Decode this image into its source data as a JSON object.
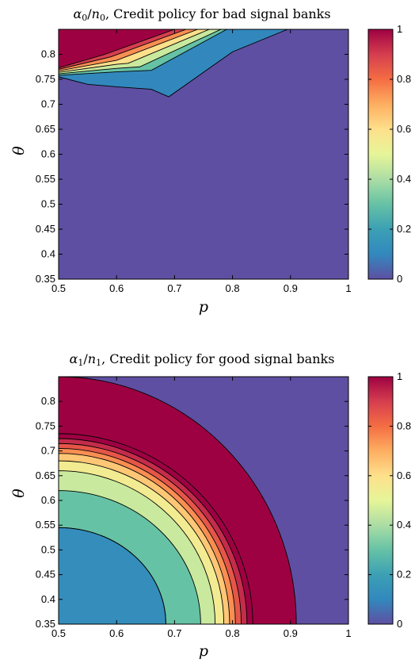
{
  "chart_data": [
    {
      "type": "contour",
      "title": "α0/n0, Credit policy for bad signal banks",
      "xlabel": "p",
      "ylabel": "θ",
      "xlim": [
        0.5,
        1
      ],
      "ylim": [
        0.35,
        0.85
      ],
      "x_ticks": [
        "0.5",
        "0.6",
        "0.7",
        "0.8",
        "0.9",
        "1"
      ],
      "y_ticks": [
        "0.35",
        "0.4",
        "0.45",
        "0.5",
        "0.55",
        "0.6",
        "0.65",
        "0.7",
        "0.75",
        "0.8"
      ],
      "colorbar": {
        "range": [
          0,
          1
        ],
        "ticks": [
          "0",
          "0.2",
          "0.4",
          "0.6",
          "0.8",
          "1"
        ],
        "colormap": "spectral"
      },
      "background_color": "#5e4fa2",
      "contour_levels": [
        0.15,
        0.3,
        0.45,
        0.6,
        0.75,
        0.9
      ],
      "regions": [
        {
          "value": 0.1,
          "boundary": [
            [
              0.5,
              0.755
            ],
            [
              0.55,
              0.74
            ],
            [
              0.6,
              0.735
            ],
            [
              0.66,
              0.73
            ],
            [
              0.69,
              0.715
            ],
            [
              0.8,
              0.805
            ],
            [
              0.895,
              0.85
            ]
          ]
        },
        {
          "value": 0.3,
          "boundary": [
            [
              0.5,
              0.758
            ],
            [
              0.6,
              0.765
            ],
            [
              0.66,
              0.768
            ],
            [
              0.79,
              0.85
            ]
          ]
        },
        {
          "value": 0.45,
          "boundary": [
            [
              0.5,
              0.761
            ],
            [
              0.6,
              0.772
            ],
            [
              0.64,
              0.775
            ],
            [
              0.78,
              0.85
            ]
          ]
        },
        {
          "value": 0.6,
          "boundary": [
            [
              0.5,
              0.764
            ],
            [
              0.6,
              0.78
            ],
            [
              0.62,
              0.782
            ],
            [
              0.76,
              0.85
            ]
          ]
        },
        {
          "value": 0.75,
          "boundary": [
            [
              0.5,
              0.767
            ],
            [
              0.6,
              0.788
            ],
            [
              0.74,
              0.85
            ]
          ]
        },
        {
          "value": 0.9,
          "boundary": [
            [
              0.5,
              0.77
            ],
            [
              0.59,
              0.795
            ],
            [
              0.72,
              0.85
            ]
          ]
        },
        {
          "value": 1.0,
          "boundary": [
            [
              0.5,
              0.773
            ],
            [
              0.58,
              0.8
            ],
            [
              0.7,
              0.85
            ]
          ]
        }
      ]
    },
    {
      "type": "contour",
      "title": "α1/n1, Credit policy for good signal banks",
      "xlabel": "p",
      "ylabel": "θ",
      "xlim": [
        0.5,
        1
      ],
      "ylim": [
        0.35,
        0.85
      ],
      "x_ticks": [
        "0.5",
        "0.6",
        "0.7",
        "0.8",
        "0.9",
        "1"
      ],
      "y_ticks": [
        "0.35",
        "0.4",
        "0.45",
        "0.5",
        "0.55",
        "0.6",
        "0.65",
        "0.7",
        "0.75",
        "0.8"
      ],
      "colorbar": {
        "range": [
          0,
          1
        ],
        "ticks": [
          "0",
          "0.2",
          "0.4",
          "0.6",
          "0.8",
          "1"
        ],
        "colormap": "spectral"
      },
      "background_color": "#5e4fa2",
      "contour_levels": [
        0.15,
        0.3,
        0.45,
        0.6,
        0.75,
        0.9
      ],
      "bands": [
        {
          "value": 0.12,
          "p_at_top": 0.5,
          "theta_at_left": 0.545,
          "p_at_bottom": 0.685
        },
        {
          "value": 0.3,
          "p_at_top": 0.5,
          "theta_at_left": 0.62,
          "p_at_bottom": 0.745
        },
        {
          "value": 0.45,
          "p_at_top": 0.5,
          "theta_at_left": 0.66,
          "p_at_bottom": 0.77
        },
        {
          "value": 0.55,
          "p_at_top": 0.5,
          "theta_at_left": 0.68,
          "p_at_bottom": 0.785
        },
        {
          "value": 0.65,
          "p_at_top": 0.5,
          "theta_at_left": 0.695,
          "p_at_bottom": 0.795
        },
        {
          "value": 0.75,
          "p_at_top": 0.5,
          "theta_at_left": 0.705,
          "p_at_bottom": 0.805
        },
        {
          "value": 0.85,
          "p_at_top": 0.5,
          "theta_at_left": 0.715,
          "p_at_bottom": 0.815
        },
        {
          "value": 0.93,
          "p_at_top": 0.5,
          "theta_at_left": 0.725,
          "p_at_bottom": 0.825
        },
        {
          "value": 1.0,
          "p_at_top": 0.5,
          "theta_at_left": 0.735,
          "p_at_bottom": 0.835
        }
      ],
      "outer_boundary": {
        "theta_at_left": 0.85,
        "p_at_bottom": 0.91
      }
    }
  ]
}
